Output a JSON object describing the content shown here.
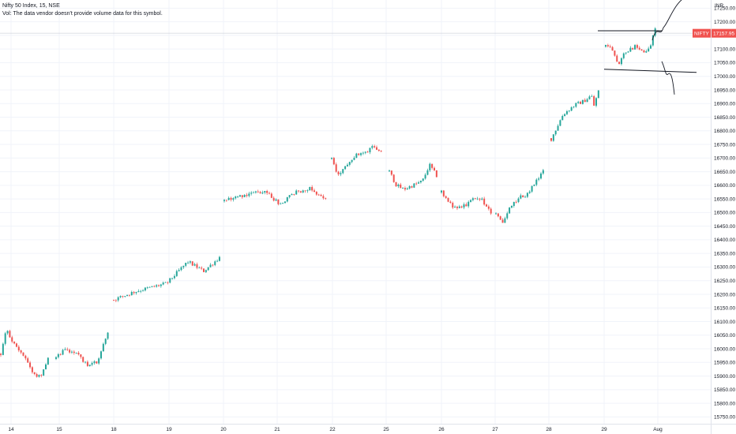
{
  "header": {
    "title": "Nifty 50 Index, 15, NSE",
    "volume_note": "Vol: The data vendor doesn't provide volume data for this symbol."
  },
  "chart_data": {
    "type": "candlestick",
    "currency": "INR",
    "symbol": "NIFTY",
    "last_price": "17157.95",
    "ylim": [
      15725,
      17280
    ],
    "y_ticks": [
      "15750.00",
      "15800.00",
      "15850.00",
      "15900.00",
      "15950.00",
      "16000.00",
      "16050.00",
      "16100.00",
      "16150.00",
      "16200.00",
      "16250.00",
      "16300.00",
      "16350.00",
      "16400.00",
      "16450.00",
      "16500.00",
      "16550.00",
      "16600.00",
      "16650.00",
      "16700.00",
      "16750.00",
      "16800.00",
      "16850.00",
      "16900.00",
      "16950.00",
      "17000.00",
      "17050.00",
      "17100.00",
      "17150.00",
      "17200.00",
      "17250.00"
    ],
    "x_labels": [
      "14",
      "15",
      "18",
      "19",
      "20",
      "21",
      "22",
      "25",
      "26",
      "27",
      "28",
      "29",
      "Aug"
    ],
    "colors": {
      "up": "#26a69a",
      "down": "#ef5350",
      "badge": "#f0524f",
      "grid": "#f0f3fa",
      "drawing": "#131722"
    },
    "segments": [
      {
        "label": "14",
        "anchors": [
          [
            0,
            15980
          ],
          [
            0.12,
            16070
          ],
          [
            0.3,
            16010
          ],
          [
            0.5,
            15975
          ],
          [
            0.7,
            15905
          ],
          [
            0.85,
            15900
          ],
          [
            1,
            15970
          ]
        ]
      },
      {
        "label": "15",
        "anchors": [
          [
            0,
            15965
          ],
          [
            0.15,
            16000
          ],
          [
            0.4,
            15985
          ],
          [
            0.6,
            15940
          ],
          [
            0.8,
            15950
          ],
          [
            1,
            16060
          ]
        ]
      },
      {
        "label": "18",
        "anchors": [
          [
            0,
            16180
          ],
          [
            0.2,
            16210
          ],
          [
            0.5,
            16240
          ],
          [
            0.7,
            16320
          ],
          [
            0.85,
            16285
          ],
          [
            1,
            16335
          ]
        ]
      },
      {
        "label": "20",
        "anchors": [
          [
            0,
            16545
          ],
          [
            0.2,
            16565
          ],
          [
            0.4,
            16580
          ],
          [
            0.55,
            16530
          ],
          [
            0.7,
            16575
          ],
          [
            0.85,
            16590
          ],
          [
            1,
            16545
          ]
        ]
      },
      {
        "label": "22",
        "anchors": [
          [
            0,
            16700
          ],
          [
            0.1,
            16640
          ],
          [
            0.2,
            16645
          ],
          [
            0.35,
            16690
          ],
          [
            0.5,
            16710
          ],
          [
            0.7,
            16720
          ],
          [
            0.8,
            16745
          ],
          [
            1,
            16730
          ]
        ]
      },
      {
        "label": "25",
        "anchors": [
          [
            0,
            16650
          ],
          [
            0.15,
            16600
          ],
          [
            0.3,
            16585
          ],
          [
            0.5,
            16600
          ],
          [
            0.7,
            16615
          ],
          [
            0.85,
            16675
          ],
          [
            1,
            16635
          ]
        ]
      },
      {
        "label": "26",
        "anchors": [
          [
            0,
            16575
          ],
          [
            0.2,
            16525
          ],
          [
            0.4,
            16515
          ],
          [
            0.6,
            16545
          ],
          [
            0.8,
            16550
          ],
          [
            1,
            16500
          ]
        ]
      },
      {
        "label": "27",
        "anchors": [
          [
            0,
            16500
          ],
          [
            0.15,
            16460
          ],
          [
            0.3,
            16520
          ],
          [
            0.5,
            16555
          ],
          [
            0.65,
            16565
          ],
          [
            0.8,
            16600
          ],
          [
            1,
            16650
          ]
        ]
      },
      {
        "label": "28",
        "anchors": [
          [
            0,
            16770
          ],
          [
            0.25,
            16860
          ],
          [
            0.5,
            16895
          ],
          [
            0.7,
            16910
          ],
          [
            0.85,
            16930
          ],
          [
            0.9,
            16890
          ],
          [
            1,
            16945
          ]
        ]
      },
      {
        "label": "29",
        "anchors": [
          [
            0,
            17110
          ],
          [
            0.15,
            17100
          ],
          [
            0.25,
            17045
          ],
          [
            0.4,
            17090
          ],
          [
            0.6,
            17110
          ],
          [
            0.8,
            17085
          ],
          [
            0.9,
            17110
          ],
          [
            1,
            17180
          ]
        ]
      }
    ],
    "annotations": {
      "upper_line": 17167,
      "lower_line": 17020
    }
  }
}
